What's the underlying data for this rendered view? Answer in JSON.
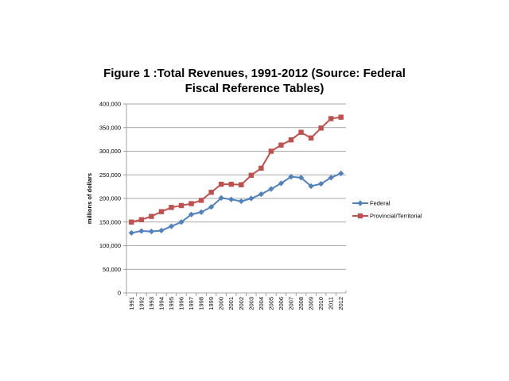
{
  "chart_data": {
    "type": "line",
    "title_lines": [
      "Figure 1 :Total Revenues, 1991-2012 (Source: Federal",
      "Fiscal Reference Tables)"
    ],
    "xlabel": "",
    "ylabel": "millions of dollars",
    "ylim": [
      0,
      400000
    ],
    "yticks": [
      0,
      50000,
      100000,
      150000,
      200000,
      250000,
      300000,
      350000,
      400000
    ],
    "ytick_labels": [
      "0",
      "50,000",
      "100,000",
      "150,000",
      "200,000",
      "250,000",
      "300,000",
      "350,000",
      "400,000"
    ],
    "grid": "horizontal",
    "legend_position": "right",
    "categories": [
      "1991",
      "1992",
      "1993",
      "1994",
      "1995",
      "1996",
      "1997",
      "1998",
      "1999",
      "2000",
      "2001",
      "2002",
      "2003",
      "2004",
      "2005",
      "2006",
      "2007",
      "2008",
      "2009",
      "2010",
      "2011",
      "2012"
    ],
    "series": [
      {
        "name": "Federal",
        "color": "#4f81bd",
        "marker": "diamond",
        "values": [
          127000,
          131000,
          130000,
          132000,
          141000,
          150000,
          166000,
          171000,
          182000,
          201000,
          198000,
          194000,
          200000,
          209000,
          220000,
          232000,
          246000,
          244000,
          226000,
          231000,
          244000,
          253000
        ]
      },
      {
        "name": "Provincial/Territorial",
        "color": "#c0504d",
        "marker": "square",
        "values": [
          150000,
          155000,
          162000,
          172000,
          181000,
          185000,
          189000,
          196000,
          213000,
          230000,
          230000,
          229000,
          249000,
          264000,
          300000,
          313000,
          324000,
          340000,
          328000,
          349000,
          369000,
          372000
        ]
      }
    ]
  }
}
